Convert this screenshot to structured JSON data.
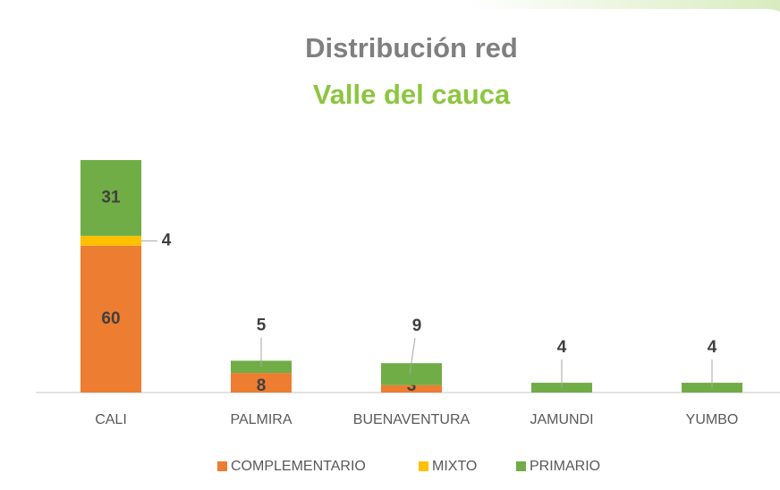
{
  "chart_data": {
    "type": "stacked_bar",
    "title": "Distribución red",
    "subtitle": "Valle del cauca",
    "categories": [
      "CALI",
      "PALMIRA",
      "BUENAVENTURA",
      "JAMUNDI",
      "YUMBO"
    ],
    "series": [
      {
        "name": "COMPLEMENTARIO",
        "color": "#ed7d31",
        "values": [
          60,
          8,
          3,
          null,
          null
        ]
      },
      {
        "name": "MIXTO",
        "color": "#ffc000",
        "values": [
          4,
          null,
          null,
          null,
          null
        ]
      },
      {
        "name": "PRIMARIO",
        "color": "#70ad47",
        "values": [
          31,
          5,
          9,
          4,
          4
        ]
      }
    ],
    "legend": "bottom"
  }
}
